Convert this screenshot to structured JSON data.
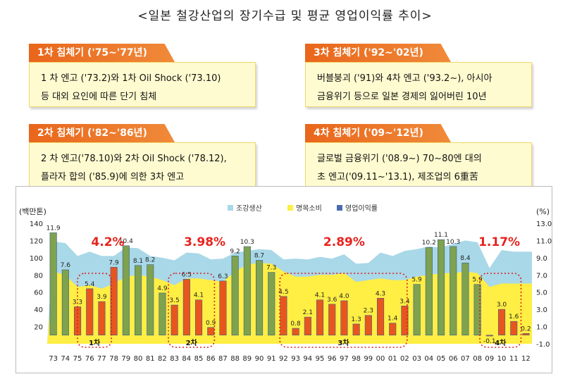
{
  "title": "<일본 철강산업의 장기수급 및 평균 영업이익률 추이>",
  "periods": [
    {
      "tag": "1차 침체기 ('75~'77년)",
      "line1": "1 차 엔고 ('73.2)와 1차 Oil Shock ('73.10)",
      "line2": "등 대외 요인에 따른 단기 침체"
    },
    {
      "tag": "3차 침체기 ('92~'02년)",
      "line1": "버블붕괴 ('91)와 4차 엔고 ('93.2~), 아시아",
      "line2": "금융위기 등으로 일본 경제의 잃어버린 10년"
    },
    {
      "tag": "2차 침체기 ('82~'86년)",
      "line1": "2 차 엔고('78.10)와 2차 Oil Shock ('78.12),",
      "line2": "플라자 합의 ('85.9)에 의한 3차 엔고"
    },
    {
      "tag": "4차 침체기 ('09~'12년)",
      "line1": "글로벌 금융위기 ('08.9~) 70~80엔 대의",
      "line2": "초 엔고('09.11~'13.1), 제조업의 6重苦"
    }
  ],
  "chart_data": {
    "type": "bar",
    "left_axis_unit": "(백만톤)",
    "right_axis_unit": "(%)",
    "left_ticks": [
      "20",
      "40",
      "60",
      "80",
      "100",
      "120",
      "140"
    ],
    "right_ticks": [
      "-1.0",
      "1.0",
      "3.0",
      "5.0",
      "7.0",
      "9.0",
      "11.0",
      "13.0"
    ],
    "ylim_left": [
      0,
      140
    ],
    "ylim_right": [
      -1.0,
      13.0
    ],
    "legend": [
      "조강생산",
      "명목소비",
      "영업이익률"
    ],
    "categories": [
      "73",
      "74",
      "75",
      "76",
      "77",
      "78",
      "79",
      "80",
      "81",
      "82",
      "83",
      "84",
      "85",
      "86",
      "87",
      "88",
      "89",
      "90",
      "91",
      "92",
      "93",
      "94",
      "95",
      "96",
      "97",
      "98",
      "99",
      "00",
      "01",
      "02",
      "03",
      "04",
      "05",
      "06",
      "07",
      "08",
      "09",
      "10",
      "11",
      "12"
    ],
    "crude_steel_production": [
      119,
      117,
      102,
      107,
      102,
      102,
      112,
      111,
      102,
      100,
      97,
      106,
      105,
      98,
      99,
      106,
      108,
      110,
      109,
      98,
      99,
      98,
      101,
      99,
      104,
      93,
      94,
      106,
      102,
      108,
      110,
      113,
      112,
      116,
      120,
      118,
      88,
      109,
      107,
      107
    ],
    "nominal_consumption": [
      84,
      80,
      66,
      68,
      64,
      70,
      78,
      80,
      78,
      74,
      68,
      76,
      76,
      74,
      72,
      84,
      92,
      94,
      93,
      84,
      78,
      78,
      80,
      80,
      82,
      72,
      74,
      76,
      74,
      74,
      78,
      80,
      82,
      82,
      84,
      82,
      66,
      70,
      70,
      70
    ],
    "operating_margin": [
      11.9,
      7.6,
      3.3,
      5.4,
      3.9,
      7.9,
      10.4,
      8.1,
      8.2,
      4.9,
      3.5,
      6.5,
      4.1,
      0.9,
      6.3,
      9.2,
      10.3,
      8.7,
      7.3,
      4.5,
      0.8,
      2.1,
      4.1,
      3.6,
      4.0,
      1.3,
      2.3,
      4.3,
      1.4,
      3.4,
      5.9,
      10.2,
      11.1,
      10.3,
      8.4,
      5.9,
      -0.1,
      3.0,
      1.6,
      0.2
    ],
    "recession_labels": [
      "1차",
      "2차",
      "3차",
      "4차"
    ],
    "recession_averages": [
      "4.2%",
      "3.98%",
      "2.89%",
      "1.17%"
    ],
    "colors": {
      "production": "#a9d8e8",
      "consumption": "#ffee44",
      "margin_normal": "#7ea24e",
      "margin_recession": "#e8561e",
      "average_text": "#e8231e"
    }
  }
}
